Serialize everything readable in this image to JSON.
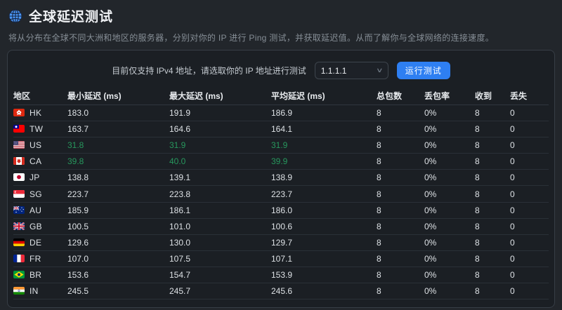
{
  "header": {
    "title": "全球延迟测试",
    "icon": "globe"
  },
  "description": "将从分布在全球不同大洲和地区的服务器，分别对你的 IP 进行 Ping 测试，并获取延迟值。从而了解你与全球网络的连接速度。",
  "controls": {
    "label": "目前仅支持 IPv4 地址，请选取你的 IP 地址进行测试",
    "ip_select": {
      "value": "1.1.1.1"
    },
    "run_button_label": "运行测试"
  },
  "table": {
    "columns": [
      "地区",
      "最小延迟 (ms)",
      "最大延迟 (ms)",
      "平均延迟 (ms)",
      "总包数",
      "丢包率",
      "收到",
      "丢失"
    ],
    "rows": [
      {
        "code": "HK",
        "min": "183.0",
        "max": "191.9",
        "avg": "186.9",
        "total": "8",
        "loss_rate": "0%",
        "received": "8",
        "lost": "0",
        "highlight": false
      },
      {
        "code": "TW",
        "min": "163.7",
        "max": "164.6",
        "avg": "164.1",
        "total": "8",
        "loss_rate": "0%",
        "received": "8",
        "lost": "0",
        "highlight": false
      },
      {
        "code": "US",
        "min": "31.8",
        "max": "31.9",
        "avg": "31.9",
        "total": "8",
        "loss_rate": "0%",
        "received": "8",
        "lost": "0",
        "highlight": true
      },
      {
        "code": "CA",
        "min": "39.8",
        "max": "40.0",
        "avg": "39.9",
        "total": "8",
        "loss_rate": "0%",
        "received": "8",
        "lost": "0",
        "highlight": true
      },
      {
        "code": "JP",
        "min": "138.8",
        "max": "139.1",
        "avg": "138.9",
        "total": "8",
        "loss_rate": "0%",
        "received": "8",
        "lost": "0",
        "highlight": false
      },
      {
        "code": "SG",
        "min": "223.7",
        "max": "223.8",
        "avg": "223.7",
        "total": "8",
        "loss_rate": "0%",
        "received": "8",
        "lost": "0",
        "highlight": false
      },
      {
        "code": "AU",
        "min": "185.9",
        "max": "186.1",
        "avg": "186.0",
        "total": "8",
        "loss_rate": "0%",
        "received": "8",
        "lost": "0",
        "highlight": false
      },
      {
        "code": "GB",
        "min": "100.5",
        "max": "101.0",
        "avg": "100.6",
        "total": "8",
        "loss_rate": "0%",
        "received": "8",
        "lost": "0",
        "highlight": false
      },
      {
        "code": "DE",
        "min": "129.6",
        "max": "130.0",
        "avg": "129.7",
        "total": "8",
        "loss_rate": "0%",
        "received": "8",
        "lost": "0",
        "highlight": false
      },
      {
        "code": "FR",
        "min": "107.0",
        "max": "107.5",
        "avg": "107.1",
        "total": "8",
        "loss_rate": "0%",
        "received": "8",
        "lost": "0",
        "highlight": false
      },
      {
        "code": "BR",
        "min": "153.6",
        "max": "154.7",
        "avg": "153.9",
        "total": "8",
        "loss_rate": "0%",
        "received": "8",
        "lost": "0",
        "highlight": false
      },
      {
        "code": "IN",
        "min": "245.5",
        "max": "245.7",
        "avg": "245.6",
        "total": "8",
        "loss_rate": "0%",
        "received": "8",
        "lost": "0",
        "highlight": false
      }
    ]
  },
  "colors": {
    "accent_blue": "#2e7ff2",
    "good_latency_green": "#27975d",
    "page_background": "#22262b",
    "panel_background": "#1b1f24"
  }
}
